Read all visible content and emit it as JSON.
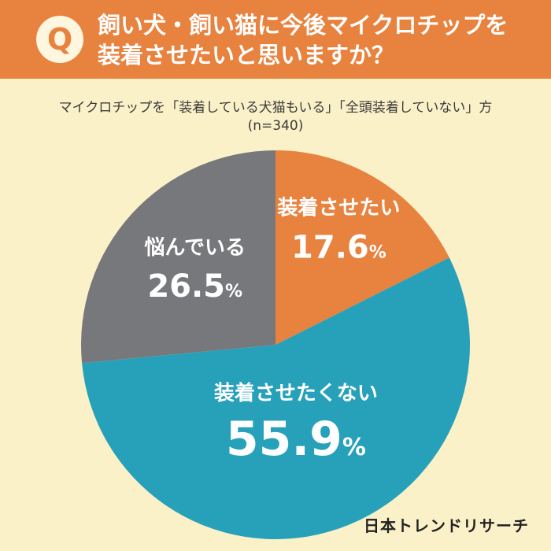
{
  "question": {
    "badge": "Q",
    "line1": "飼い犬・飼い猫に今後マイクロチップを",
    "line2": "装着させたいと思いますか？"
  },
  "subtitle": {
    "line1": "マイクロチップを「装着している犬猫もいる」「全頭装着していない」方",
    "line2": "(n=340)"
  },
  "brand": "日本トレンドリサーチ",
  "colors": {
    "header": "#E8823F",
    "background": "#FBF1C8",
    "slice_orange": "#E8823F",
    "slice_teal": "#27A1BA",
    "slice_gray": "#77787B"
  },
  "chart_data": {
    "type": "pie",
    "unit": "%",
    "start_angle": "12 o'clock",
    "direction": "clockwise",
    "slices": [
      {
        "label": "装着させたい",
        "value": 17.6,
        "color": "#E8823F"
      },
      {
        "label": "装着させたくない",
        "value": 55.9,
        "color": "#27A1BA"
      },
      {
        "label": "悩んでいる",
        "value": 26.5,
        "color": "#77787B"
      }
    ]
  }
}
